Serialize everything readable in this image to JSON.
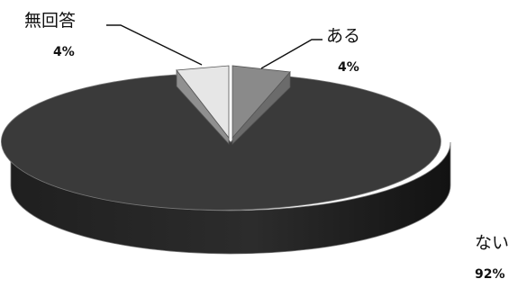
{
  "chart_data": {
    "type": "pie",
    "style": "3d-exploded",
    "title": "",
    "slices": [
      {
        "label": "ある",
        "value": 4,
        "value_label": "4%",
        "color": "#8a8a8a"
      },
      {
        "label": "ない",
        "value": 92,
        "value_label": "92%",
        "color": "#3a3a3a"
      },
      {
        "label": "無回答",
        "value": 4,
        "value_label": "4%",
        "color": "#e6e6e6"
      }
    ],
    "legend": "none"
  }
}
